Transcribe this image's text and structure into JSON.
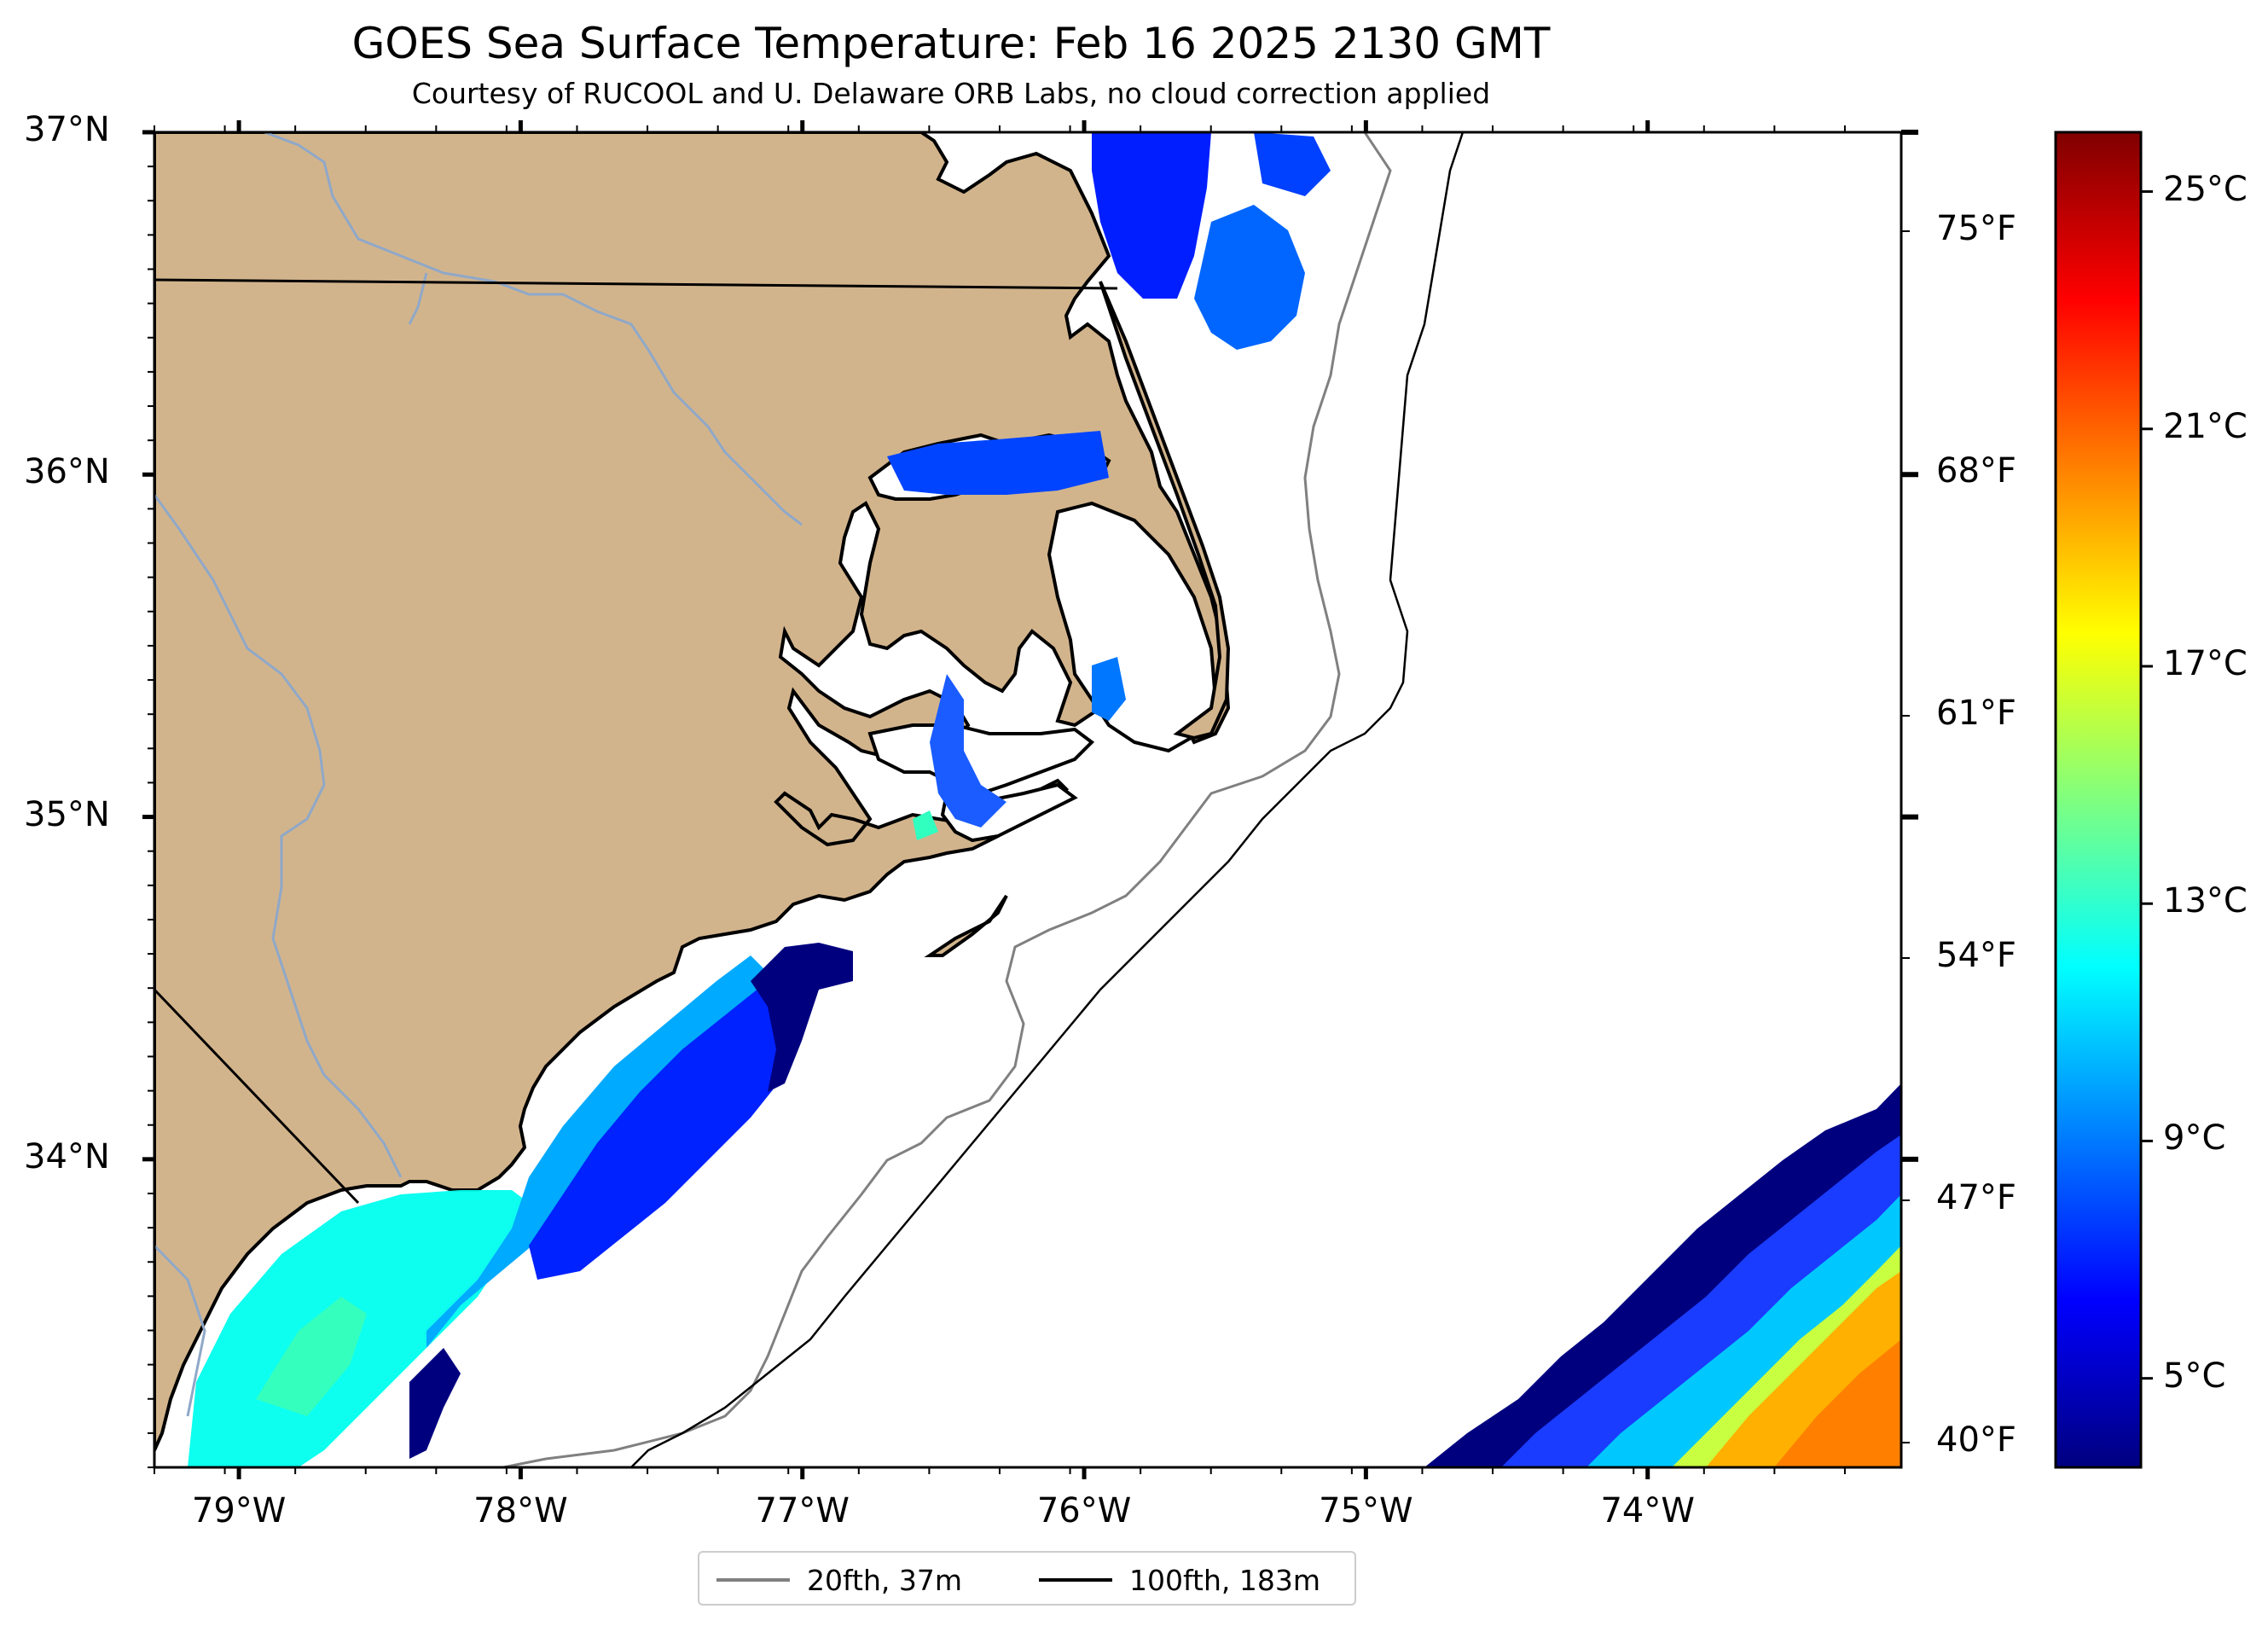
{
  "title": "GOES Sea Surface Temperature: Feb 16 2025 2130 GMT",
  "subtitle": "Courtesy of RUCOOL and U. Delaware ORB Labs, no cloud correction applied",
  "map": {
    "extent": {
      "lon": [
        -79.3,
        -73.1
      ],
      "lat": [
        33.1,
        37.0
      ]
    },
    "land_color": "#d2b48c",
    "lat_ticks": [
      {
        "value": 37,
        "label": "37°N"
      },
      {
        "value": 36,
        "label": "36°N"
      },
      {
        "value": 35,
        "label": "35°N"
      },
      {
        "value": 34,
        "label": "34°N"
      }
    ],
    "lon_ticks": [
      {
        "value": -79,
        "label": "79°W"
      },
      {
        "value": -78,
        "label": "78°W"
      },
      {
        "value": -77,
        "label": "77°W"
      },
      {
        "value": -76,
        "label": "76°W"
      },
      {
        "value": -75,
        "label": "75°W"
      },
      {
        "value": -74,
        "label": "74°W"
      }
    ]
  },
  "fahrenheit_axis": [
    {
      "label": "75°F"
    },
    {
      "label": "68°F"
    },
    {
      "label": "61°F"
    },
    {
      "label": "54°F"
    },
    {
      "label": "47°F"
    },
    {
      "label": "40°F"
    }
  ],
  "colorbar": {
    "range_c": [
      3.5,
      26
    ],
    "labels": [
      {
        "value": 25,
        "label": "25°C"
      },
      {
        "value": 21,
        "label": "21°C"
      },
      {
        "value": 17,
        "label": "17°C"
      },
      {
        "value": 13,
        "label": "13°C"
      },
      {
        "value": 9,
        "label": "9°C"
      },
      {
        "value": 5,
        "label": "5°C"
      }
    ],
    "colors": [
      "#00007f",
      "#0000ff",
      "#007fff",
      "#00ffff",
      "#7fff7f",
      "#ffff00",
      "#ff7f00",
      "#ff0000",
      "#7f0000"
    ]
  },
  "legend": [
    {
      "label": "20fth, 37m",
      "color": "#808080"
    },
    {
      "label": "100fth, 183m",
      "color": "#000000"
    }
  ]
}
